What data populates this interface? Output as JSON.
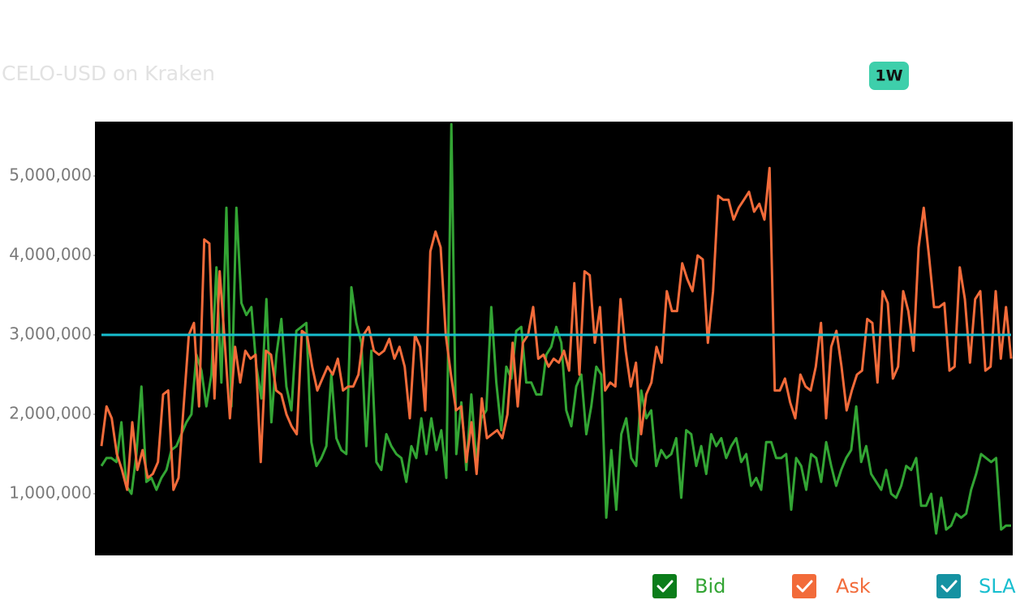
{
  "range_button": "1W",
  "chart_data": {
    "type": "line",
    "title": "CELO-USD on Kraken",
    "ylim": [
      224000,
      5684000
    ],
    "yticks": [
      {
        "value": 1000000,
        "label": "1,000,000"
      },
      {
        "value": 2000000,
        "label": "2,000,000"
      },
      {
        "value": 3000000,
        "label": "3,000,000"
      },
      {
        "value": 4000000,
        "label": "4,000,000"
      },
      {
        "value": 5000000,
        "label": "5,000,000"
      }
    ],
    "grid": false,
    "legend": "bottom-right",
    "series": [
      {
        "name": "Bid",
        "color": "#33a534",
        "values": [
          1350000,
          1450000,
          1450000,
          1400000,
          1900000,
          1100000,
          1000000,
          1500000,
          2350000,
          1150000,
          1200000,
          1050000,
          1200000,
          1300000,
          1550000,
          1600000,
          1750000,
          1900000,
          2000000,
          2750000,
          2550000,
          2100000,
          2500000,
          3850000,
          2400000,
          4600000,
          2100000,
          4600000,
          3400000,
          3250000,
          3350000,
          2600000,
          2200000,
          3450000,
          1900000,
          2750000,
          3200000,
          2350000,
          2050000,
          3050000,
          3100000,
          3150000,
          1650000,
          1350000,
          1450000,
          1600000,
          2500000,
          1700000,
          1550000,
          1500000,
          3600000,
          3150000,
          2900000,
          1600000,
          2800000,
          1400000,
          1300000,
          1750000,
          1600000,
          1500000,
          1450000,
          1150000,
          1600000,
          1450000,
          1950000,
          1500000,
          1950000,
          1550000,
          1800000,
          1200000,
          5650000,
          1500000,
          2150000,
          1300000,
          2250000,
          1400000,
          1950000,
          2050000,
          3350000,
          2400000,
          1800000,
          2600000,
          2450000,
          3050000,
          3100000,
          2400000,
          2400000,
          2250000,
          2250000,
          2750000,
          2850000,
          3100000,
          2900000,
          2050000,
          1850000,
          2350000,
          2500000,
          1750000,
          2100000,
          2600000,
          2500000,
          700000,
          1550000,
          800000,
          1750000,
          1950000,
          1450000,
          1350000,
          2300000,
          1950000,
          2050000,
          1350000,
          1550000,
          1450000,
          1500000,
          1700000,
          950000,
          1800000,
          1750000,
          1350000,
          1600000,
          1250000,
          1750000,
          1600000,
          1700000,
          1450000,
          1600000,
          1700000,
          1400000,
          1500000,
          1100000,
          1200000,
          1050000,
          1650000,
          1650000,
          1450000,
          1450000,
          1500000,
          800000,
          1450000,
          1350000,
          1050000,
          1500000,
          1450000,
          1150000,
          1650000,
          1350000,
          1100000,
          1300000,
          1450000,
          1550000,
          2100000,
          1400000,
          1600000,
          1250000,
          1150000,
          1050000,
          1300000,
          1000000,
          950000,
          1100000,
          1350000,
          1300000,
          1450000,
          850000,
          850000,
          1000000,
          500000,
          950000,
          550000,
          600000,
          750000,
          700000,
          750000,
          1050000,
          1250000,
          1500000,
          1450000,
          1400000,
          1450000,
          550000,
          600000,
          600000
        ]
      },
      {
        "name": "Ask",
        "color": "#f26b3a",
        "values": [
          1600000,
          2100000,
          1950000,
          1500000,
          1300000,
          1050000,
          1900000,
          1300000,
          1550000,
          1200000,
          1250000,
          1400000,
          2250000,
          2300000,
          1050000,
          1200000,
          2100000,
          3000000,
          3150000,
          2100000,
          4200000,
          4150000,
          2200000,
          3800000,
          2900000,
          1950000,
          2850000,
          2400000,
          2800000,
          2700000,
          2750000,
          1400000,
          2800000,
          2750000,
          2300000,
          2250000,
          2000000,
          1850000,
          1750000,
          3050000,
          3000000,
          2600000,
          2300000,
          2450000,
          2600000,
          2500000,
          2700000,
          2300000,
          2350000,
          2350000,
          2500000,
          3000000,
          3100000,
          2800000,
          2750000,
          2800000,
          2950000,
          2700000,
          2850000,
          2600000,
          1950000,
          3000000,
          2850000,
          2050000,
          4050000,
          4300000,
          4100000,
          3000000,
          2500000,
          2050000,
          2100000,
          1400000,
          1900000,
          1250000,
          2200000,
          1700000,
          1750000,
          1800000,
          1700000,
          2000000,
          2900000,
          2100000,
          2900000,
          3000000,
          3350000,
          2700000,
          2750000,
          2600000,
          2700000,
          2650000,
          2800000,
          2550000,
          3650000,
          2500000,
          3800000,
          3750000,
          2900000,
          3350000,
          2300000,
          2400000,
          2350000,
          3450000,
          2800000,
          2350000,
          2650000,
          1750000,
          2250000,
          2400000,
          2850000,
          2650000,
          3550000,
          3300000,
          3300000,
          3900000,
          3700000,
          3550000,
          4000000,
          3950000,
          2900000,
          3550000,
          4750000,
          4700000,
          4700000,
          4450000,
          4600000,
          4700000,
          4800000,
          4550000,
          4650000,
          4450000,
          5100000,
          2300000,
          2300000,
          2450000,
          2150000,
          1950000,
          2500000,
          2350000,
          2300000,
          2600000,
          3150000,
          1950000,
          2850000,
          3050000,
          2600000,
          2050000,
          2300000,
          2500000,
          2550000,
          3200000,
          3150000,
          2400000,
          3550000,
          3400000,
          2450000,
          2600000,
          3550000,
          3300000,
          2800000,
          4100000,
          4600000,
          4000000,
          3350000,
          3350000,
          3400000,
          2550000,
          2600000,
          3850000,
          3450000,
          2650000,
          3450000,
          3550000,
          2550000,
          2600000,
          3550000,
          2700000,
          3350000,
          2700000
        ]
      },
      {
        "name": "SLA",
        "color": "#17becf",
        "values": [
          3000000,
          3000000
        ]
      }
    ]
  }
}
